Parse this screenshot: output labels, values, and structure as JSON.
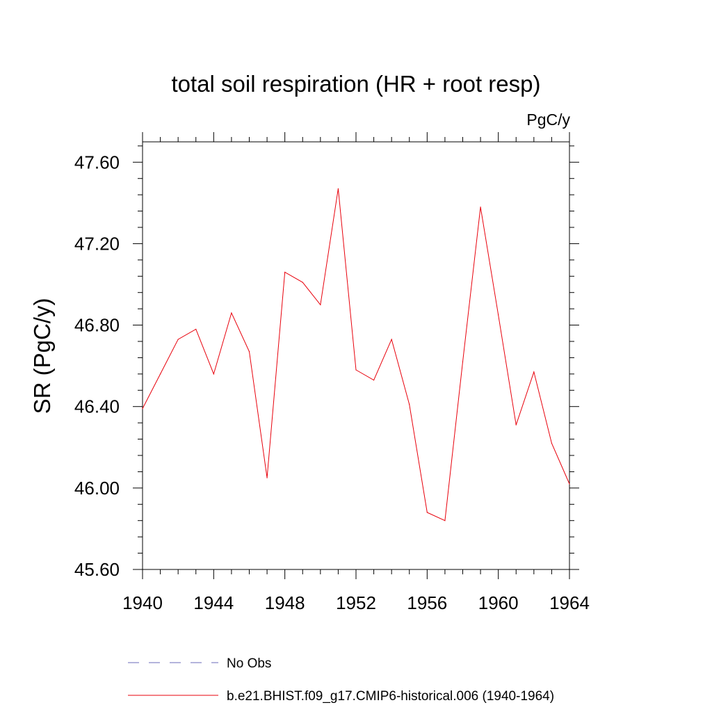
{
  "chart_data": {
    "type": "line",
    "title": "total soil respiration (HR + root resp)",
    "units": "PgC/y",
    "ylabel": "SR  (PgC/y)",
    "xlabel": "",
    "xlim": [
      1940,
      1964
    ],
    "ylim": [
      45.6,
      47.7
    ],
    "x_ticks": [
      1940,
      1944,
      1948,
      1952,
      1956,
      1960,
      1964
    ],
    "x_tick_labels": [
      "1940",
      "1944",
      "1948",
      "1952",
      "1956",
      "1960",
      "1964"
    ],
    "y_ticks": [
      45.6,
      46.0,
      46.4,
      46.8,
      47.2,
      47.6
    ],
    "y_tick_labels": [
      "45.60",
      "46.00",
      "46.40",
      "46.80",
      "47.20",
      "47.60"
    ],
    "grid": false,
    "legend_position": "bottom",
    "series": [
      {
        "name": "b.e21.BHIST.f09_g17.CMIP6-historical.006 (1940-1964)",
        "color": "#e8000b",
        "style": "solid",
        "x": [
          1940,
          1941,
          1942,
          1943,
          1944,
          1945,
          1946,
          1947,
          1948,
          1949,
          1950,
          1951,
          1952,
          1953,
          1954,
          1955,
          1956,
          1957,
          1958,
          1959,
          1960,
          1961,
          1962,
          1963,
          1964
        ],
        "values": [
          46.39,
          46.56,
          46.73,
          46.78,
          46.56,
          46.86,
          46.67,
          46.05,
          47.06,
          47.01,
          46.9,
          47.47,
          46.58,
          46.53,
          46.73,
          46.41,
          45.88,
          45.84,
          46.62,
          47.38,
          46.85,
          46.31,
          46.57,
          46.22,
          46.02
        ]
      },
      {
        "name": "No Obs",
        "color": "#6a6ab8",
        "style": "dashed",
        "x": [],
        "values": []
      }
    ]
  }
}
